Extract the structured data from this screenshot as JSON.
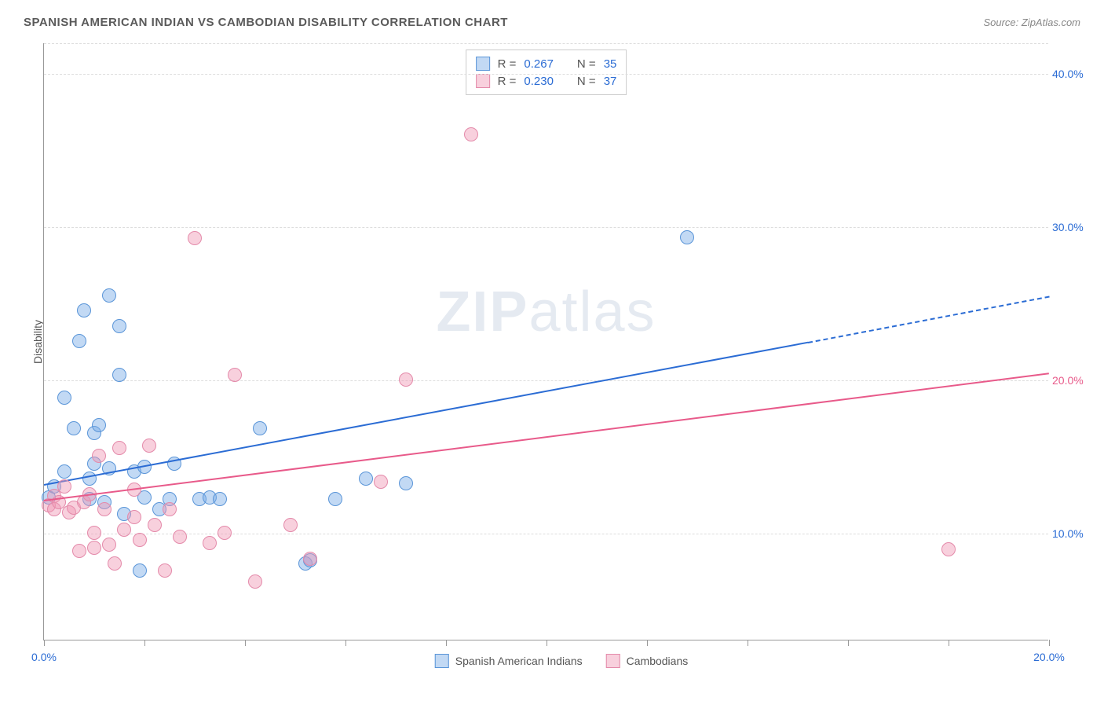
{
  "header": {
    "title": "SPANISH AMERICAN INDIAN VS CAMBODIAN DISABILITY CORRELATION CHART",
    "source": "Source: ZipAtlas.com"
  },
  "watermark": {
    "bold": "ZIP",
    "light": "atlas"
  },
  "chart": {
    "type": "scatter",
    "ylabel": "Disability",
    "background_color": "#ffffff",
    "grid_color": "#dddddd",
    "axis_color": "#999999",
    "xlim": [
      0,
      20
    ],
    "ylim": [
      3,
      42
    ],
    "xticks": [
      {
        "pos": 0,
        "label": "0.0%",
        "color": "#2b6cd4"
      },
      {
        "pos": 2,
        "label": ""
      },
      {
        "pos": 4,
        "label": ""
      },
      {
        "pos": 6,
        "label": ""
      },
      {
        "pos": 8,
        "label": ""
      },
      {
        "pos": 10,
        "label": ""
      },
      {
        "pos": 12,
        "label": ""
      },
      {
        "pos": 14,
        "label": ""
      },
      {
        "pos": 16,
        "label": ""
      },
      {
        "pos": 18,
        "label": ""
      },
      {
        "pos": 20,
        "label": "20.0%",
        "color": "#2b6cd4"
      }
    ],
    "yticks": [
      {
        "pos": 10,
        "label": "10.0%",
        "color": "#2b6cd4"
      },
      {
        "pos": 20,
        "label": "20.0%",
        "color": "#e85a8a"
      },
      {
        "pos": 30,
        "label": "30.0%",
        "color": "#2b6cd4"
      },
      {
        "pos": 40,
        "label": "40.0%",
        "color": "#2b6cd4"
      }
    ],
    "series": [
      {
        "name": "Spanish American Indians",
        "fill": "rgba(120,170,230,0.45)",
        "stroke": "#5a95d8",
        "line_color": "#2b6cd4",
        "marker_radius": 9,
        "trend": {
          "x1": 0,
          "y1": 13.2,
          "x2_solid": 15.2,
          "y2_solid": 22.5,
          "x2_dash": 20,
          "y2_dash": 25.5
        },
        "stats": {
          "r_label": "R =",
          "r": "0.267",
          "n_label": "N =",
          "n": "35"
        },
        "points": [
          [
            0.1,
            12.3
          ],
          [
            0.2,
            13.0
          ],
          [
            0.4,
            14.0
          ],
          [
            0.4,
            18.8
          ],
          [
            0.6,
            16.8
          ],
          [
            0.7,
            22.5
          ],
          [
            0.8,
            24.5
          ],
          [
            0.9,
            12.2
          ],
          [
            0.9,
            13.5
          ],
          [
            1.0,
            16.5
          ],
          [
            1.0,
            14.5
          ],
          [
            1.1,
            17.0
          ],
          [
            1.2,
            12.0
          ],
          [
            1.3,
            14.2
          ],
          [
            1.3,
            25.5
          ],
          [
            1.5,
            20.3
          ],
          [
            1.5,
            23.5
          ],
          [
            1.6,
            11.2
          ],
          [
            1.8,
            14.0
          ],
          [
            1.9,
            7.5
          ],
          [
            2.0,
            12.3
          ],
          [
            2.0,
            14.3
          ],
          [
            2.3,
            11.5
          ],
          [
            2.5,
            12.2
          ],
          [
            2.6,
            14.5
          ],
          [
            3.1,
            12.2
          ],
          [
            3.3,
            12.3
          ],
          [
            3.5,
            12.2
          ],
          [
            4.3,
            16.8
          ],
          [
            5.2,
            8.0
          ],
          [
            5.3,
            8.2
          ],
          [
            5.8,
            12.2
          ],
          [
            6.4,
            13.5
          ],
          [
            7.2,
            13.2
          ],
          [
            12.8,
            29.3
          ]
        ]
      },
      {
        "name": "Cambodians",
        "fill": "rgba(240,150,180,0.45)",
        "stroke": "#e48aaa",
        "line_color": "#e85a8a",
        "marker_radius": 9,
        "trend": {
          "x1": 0,
          "y1": 12.2,
          "x2_solid": 20,
          "y2_solid": 20.5
        },
        "stats": {
          "r_label": "R =",
          "r": "0.230",
          "n_label": "N =",
          "n": "37"
        },
        "points": [
          [
            0.1,
            11.8
          ],
          [
            0.2,
            12.4
          ],
          [
            0.2,
            11.5
          ],
          [
            0.3,
            12.0
          ],
          [
            0.4,
            13.0
          ],
          [
            0.5,
            11.3
          ],
          [
            0.6,
            11.6
          ],
          [
            0.7,
            8.8
          ],
          [
            0.8,
            12.0
          ],
          [
            0.9,
            12.5
          ],
          [
            1.0,
            10.0
          ],
          [
            1.0,
            9.0
          ],
          [
            1.1,
            15.0
          ],
          [
            1.2,
            11.5
          ],
          [
            1.3,
            9.2
          ],
          [
            1.4,
            8.0
          ],
          [
            1.5,
            15.5
          ],
          [
            1.6,
            10.2
          ],
          [
            1.8,
            11.0
          ],
          [
            1.8,
            12.8
          ],
          [
            1.9,
            9.5
          ],
          [
            2.1,
            15.7
          ],
          [
            2.2,
            10.5
          ],
          [
            2.4,
            7.5
          ],
          [
            2.5,
            11.5
          ],
          [
            2.7,
            9.7
          ],
          [
            3.0,
            29.2
          ],
          [
            3.3,
            9.3
          ],
          [
            3.6,
            10.0
          ],
          [
            3.8,
            20.3
          ],
          [
            4.2,
            6.8
          ],
          [
            4.9,
            10.5
          ],
          [
            5.3,
            8.3
          ],
          [
            6.7,
            13.3
          ],
          [
            7.2,
            20.0
          ],
          [
            8.5,
            36.0
          ],
          [
            18.0,
            8.9
          ]
        ]
      }
    ],
    "legend": [
      {
        "label": "Spanish American Indians",
        "fill": "rgba(120,170,230,0.45)",
        "stroke": "#5a95d8"
      },
      {
        "label": "Cambodians",
        "fill": "rgba(240,150,180,0.45)",
        "stroke": "#e48aaa"
      }
    ]
  }
}
